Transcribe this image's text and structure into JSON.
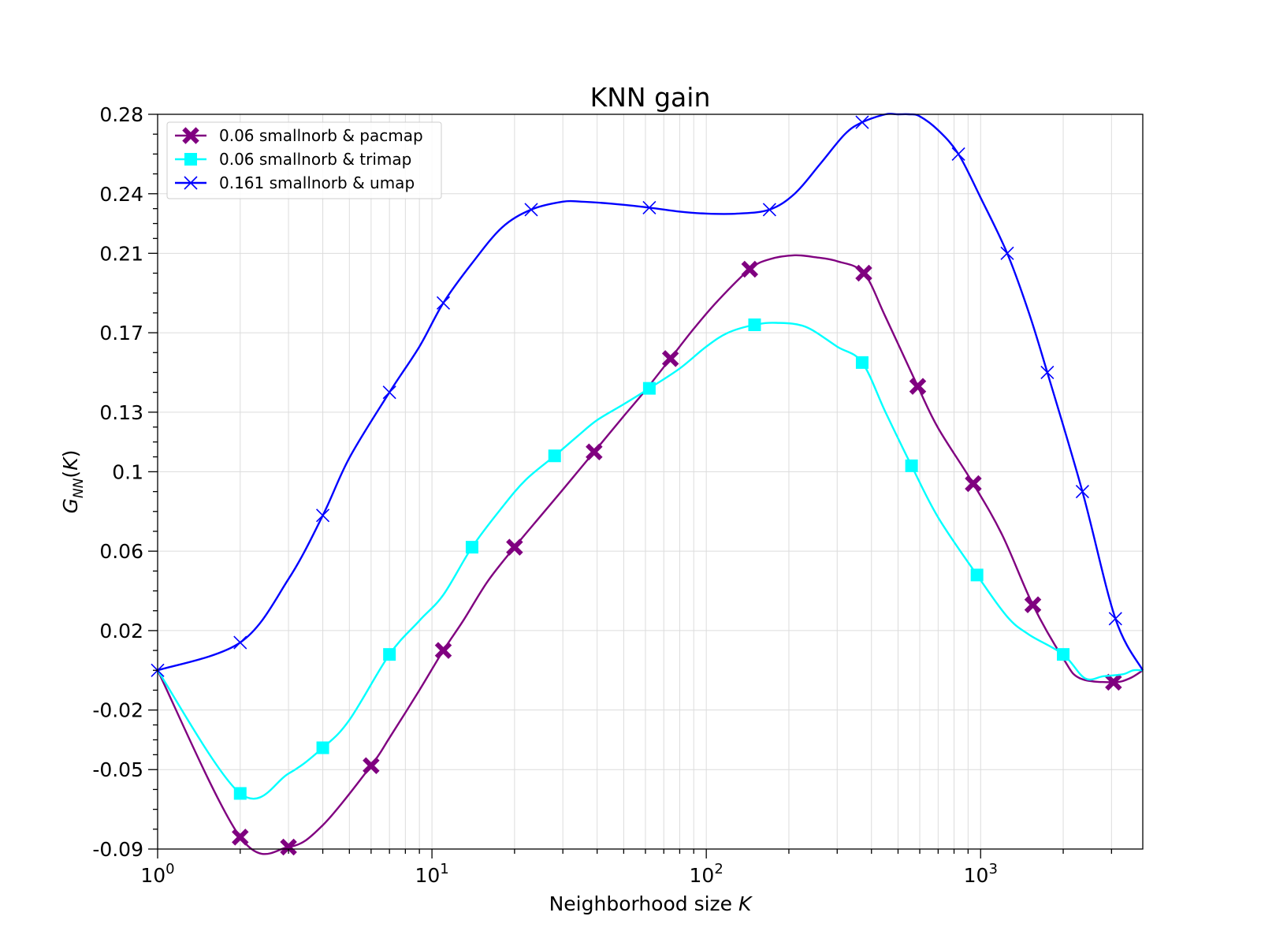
{
  "chart_data": {
    "type": "line",
    "title": "KNN gain",
    "xlabel": "Neighborhood size K",
    "ylabel": "G_NN(K)",
    "x_scale": "log",
    "xlim": [
      1,
      3900
    ],
    "ylim": [
      -0.09,
      0.28
    ],
    "grid": true,
    "legend_position": "top-left",
    "x_tick_labels": [
      {
        "value": 1,
        "base": "10",
        "exp": "0"
      },
      {
        "value": 10,
        "base": "10",
        "exp": "1"
      },
      {
        "value": 100,
        "base": "10",
        "exp": "2"
      },
      {
        "value": 1000,
        "base": "10",
        "exp": "3"
      }
    ],
    "y_ticks": [
      -0.09,
      -0.05,
      -0.02,
      0.02,
      0.06,
      0.1,
      0.13,
      0.17,
      0.21,
      0.24,
      0.28
    ],
    "y_tick_labels": [
      "-0.09",
      "-0.05",
      "-0.02",
      "0.02",
      "0.06",
      "0.1",
      "0.13",
      "0.17",
      "0.21",
      "0.24",
      "0.28"
    ],
    "series": [
      {
        "name": "0.06 smallnorb & pacmap",
        "color": "#800080",
        "marker": "x-filled",
        "x": [
          1,
          2,
          3,
          4,
          6,
          7,
          9,
          11,
          13,
          16,
          20,
          25,
          30,
          39,
          50,
          60,
          74,
          90,
          110,
          144,
          170,
          210,
          250,
          300,
          375,
          450,
          590,
          700,
          940,
          1200,
          1550,
          2000,
          2300,
          3050,
          3500,
          3900
        ],
        "y": [
          0,
          -0.084,
          -0.089,
          -0.078,
          -0.048,
          -0.034,
          -0.01,
          0.01,
          0.025,
          0.045,
          0.062,
          0.078,
          0.091,
          0.11,
          0.128,
          0.141,
          0.157,
          0.172,
          0.186,
          0.202,
          0.207,
          0.209,
          0.208,
          0.206,
          0.2,
          0.178,
          0.143,
          0.122,
          0.094,
          0.068,
          0.033,
          0.006,
          -0.004,
          -0.006,
          -0.004,
          0
        ],
        "markers_x": [
          2,
          3,
          6,
          11,
          20,
          39,
          74,
          144,
          375,
          590,
          940,
          1550,
          3050
        ],
        "markers_y": [
          -0.084,
          -0.089,
          -0.048,
          0.01,
          0.062,
          0.11,
          0.157,
          0.202,
          0.2,
          0.143,
          0.094,
          0.033,
          -0.006
        ]
      },
      {
        "name": "0.06 smallnorb & trimap",
        "color": "#00FFFF",
        "marker": "square",
        "x": [
          1,
          2,
          3,
          4,
          5,
          7,
          9,
          11,
          14,
          18,
          22,
          28,
          34,
          40,
          50,
          62,
          80,
          100,
          120,
          150,
          180,
          230,
          300,
          370,
          450,
          560,
          700,
          970,
          1250,
          1500,
          2000,
          2400,
          2800,
          3300,
          3600,
          3900
        ],
        "y": [
          0,
          -0.062,
          -0.052,
          -0.039,
          -0.025,
          0.008,
          0.025,
          0.038,
          0.062,
          0.082,
          0.096,
          0.108,
          0.118,
          0.126,
          0.134,
          0.142,
          0.152,
          0.163,
          0.17,
          0.174,
          0.175,
          0.173,
          0.163,
          0.155,
          0.13,
          0.103,
          0.077,
          0.048,
          0.027,
          0.018,
          0.008,
          -0.004,
          -0.003,
          -0.002,
          0,
          0
        ],
        "markers_x": [
          2,
          4,
          7,
          14,
          28,
          62,
          150,
          370,
          560,
          970,
          2000
        ],
        "markers_y": [
          -0.062,
          -0.039,
          0.008,
          0.062,
          0.108,
          0.142,
          0.174,
          0.155,
          0.103,
          0.048,
          0.008
        ]
      },
      {
        "name": "0.161 smallnorb & umap",
        "color": "#0000FF",
        "marker": "x",
        "x": [
          1,
          2,
          3,
          4,
          5,
          7,
          9,
          11,
          14,
          18,
          23,
          30,
          35,
          45,
          62,
          80,
          100,
          130,
          170,
          210,
          260,
          320,
          370,
          450,
          500,
          550,
          600,
          700,
          830,
          1000,
          1250,
          1500,
          1750,
          2350,
          3100,
          3900
        ],
        "y": [
          0,
          0.014,
          0.046,
          0.078,
          0.107,
          0.14,
          0.163,
          0.185,
          0.205,
          0.223,
          0.232,
          0.236,
          0.236,
          0.235,
          0.233,
          0.231,
          0.23,
          0.23,
          0.232,
          0.24,
          0.255,
          0.27,
          0.276,
          0.28,
          0.28,
          0.28,
          0.279,
          0.272,
          0.26,
          0.238,
          0.21,
          0.18,
          0.15,
          0.09,
          0.026,
          0
        ],
        "markers_x": [
          1,
          2,
          4,
          7,
          11,
          23,
          62,
          170,
          370,
          830,
          1250,
          1750,
          2350,
          3100
        ],
        "markers_y": [
          0,
          0.014,
          0.078,
          0.14,
          0.185,
          0.232,
          0.233,
          0.232,
          0.276,
          0.26,
          0.21,
          0.15,
          0.09,
          0.026
        ]
      }
    ]
  }
}
